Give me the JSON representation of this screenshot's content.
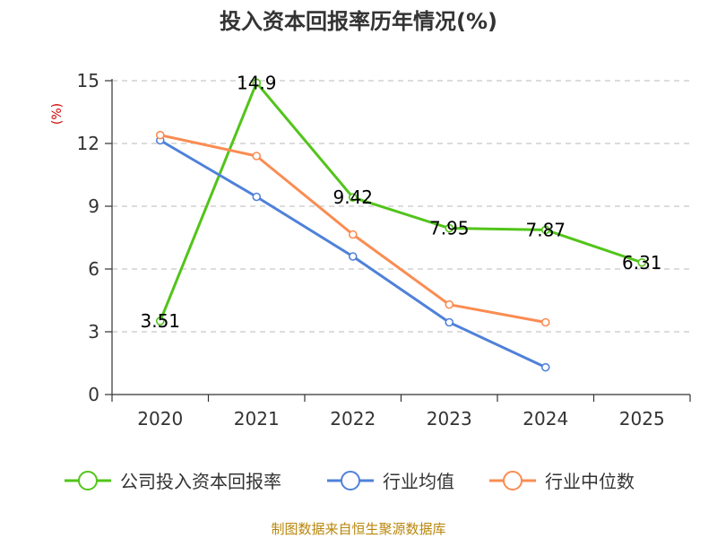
{
  "chart_data": {
    "type": "line",
    "title": "投入资本回报率历年情况(%)",
    "ylabel": "(%)",
    "xlabel": "",
    "categories": [
      "2020",
      "2021",
      "2022",
      "2023",
      "2024",
      "2025"
    ],
    "ylim": [
      0,
      15
    ],
    "yticks": [
      0,
      3,
      6,
      9,
      12,
      15
    ],
    "grid": true,
    "legend_position": "bottom",
    "series": [
      {
        "name": "公司投入资本回报率",
        "color": "#52c41a",
        "values": [
          3.51,
          14.9,
          9.42,
          7.95,
          7.87,
          6.31
        ],
        "labels": [
          "3.51",
          "14.9",
          "9.42",
          "7.95",
          "7.87",
          "6.31"
        ]
      },
      {
        "name": "行业均值",
        "color": "#4f81d9",
        "values": [
          12.15,
          9.45,
          6.6,
          3.45,
          1.3,
          null
        ]
      },
      {
        "name": "行业中位数",
        "color": "#fa8c52",
        "values": [
          12.4,
          11.4,
          7.65,
          4.3,
          3.45,
          null
        ]
      }
    ],
    "source": "制图数据来自恒生聚源数据库"
  }
}
